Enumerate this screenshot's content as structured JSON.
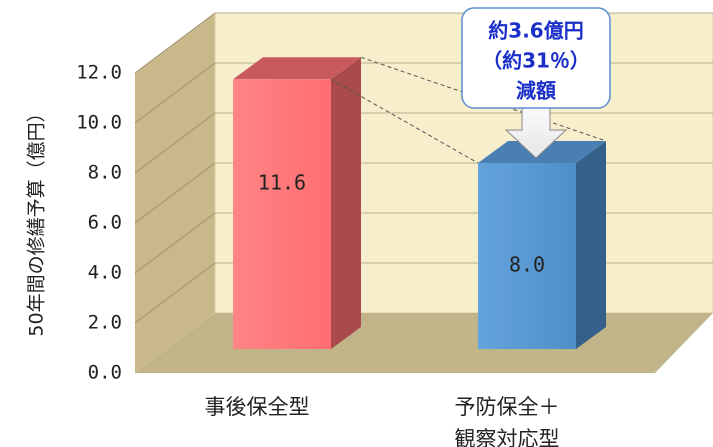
{
  "chart_data": {
    "type": "bar",
    "title": "",
    "ylabel": "50年間の修繕予算（億円）",
    "ylim": [
      0,
      12
    ],
    "yticks": [
      "0.0",
      "2.0",
      "4.0",
      "6.0",
      "8.0",
      "10.0",
      "12.0"
    ],
    "categories": [
      "事後保全型",
      "予防保全＋観察対応型"
    ],
    "category_lines": [
      [
        "事後保全型"
      ],
      [
        "予防保全＋",
        "観察対応型"
      ]
    ],
    "values": [
      11.6,
      8.0
    ],
    "data_labels": [
      "11.6",
      "8.0"
    ],
    "grid": true,
    "legend": "none",
    "colors": {
      "wall": "#f7efcc",
      "side_wall": "#c9b98a",
      "floor": "#c2b489",
      "bar1_front": "#ff7a7c",
      "bar1_side": "#a94a4c",
      "bar1_top": "#c85a5d",
      "bar2_front": "#5b9bd5",
      "bar2_side": "#35608a",
      "bar2_top": "#4a7fb3",
      "callout_text": "#1a2ec8"
    },
    "annotation": {
      "lines": [
        "約3.6億円",
        "（約31％）",
        "減額"
      ]
    }
  }
}
